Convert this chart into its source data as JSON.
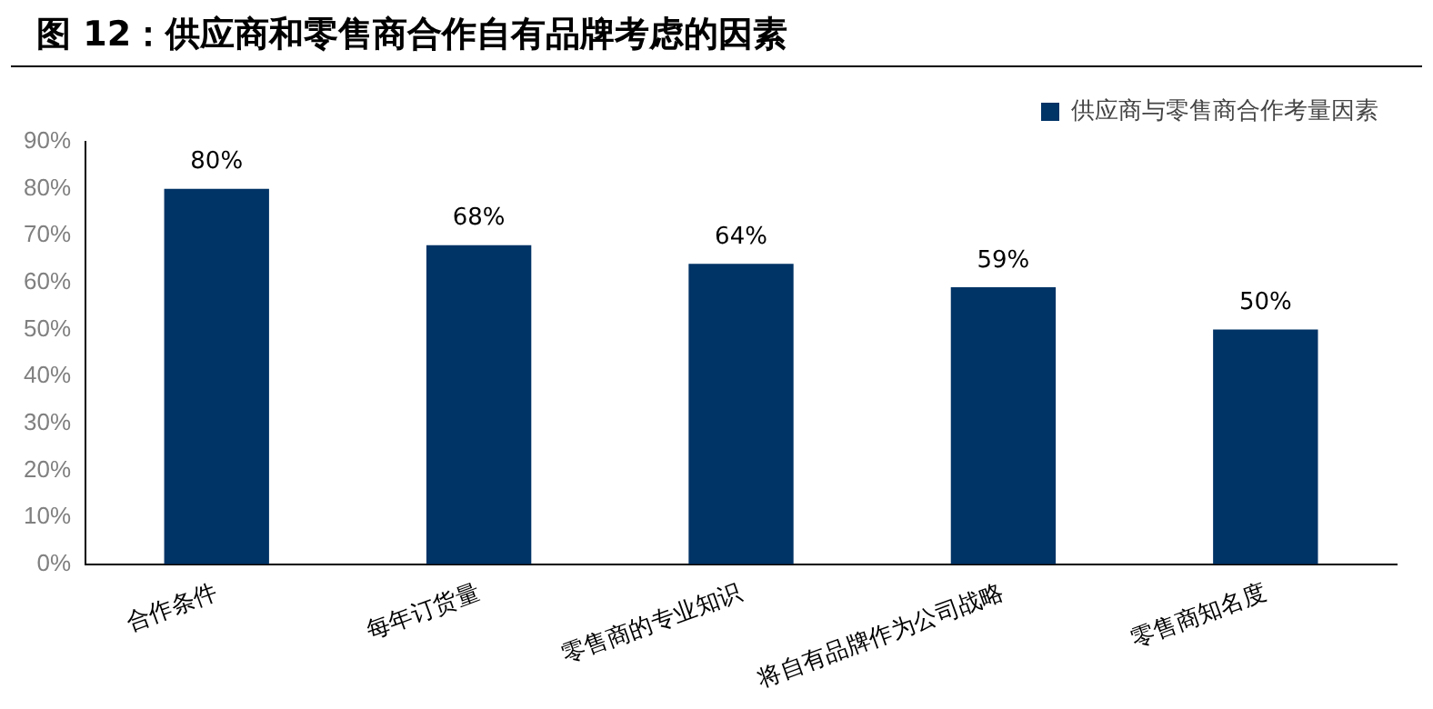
{
  "chart_data": {
    "type": "bar",
    "title": "图 12：供应商和零售商合作自有品牌考虑的因素",
    "categories": [
      "合作条件",
      "每年订货量",
      "零售商的专业知识",
      "将自有品牌作为公司战略",
      "零售商知名度"
    ],
    "series": [
      {
        "name": "供应商与零售商合作考量因素",
        "color": "#003366",
        "values": [
          80,
          68,
          64,
          59,
          50
        ],
        "value_labels": [
          "80%",
          "68%",
          "64%",
          "59%",
          "50%"
        ]
      }
    ],
    "ylim": [
      0,
      90
    ],
    "yticks": [
      {
        "value": 0,
        "label": "0%"
      },
      {
        "value": 10,
        "label": "10%"
      },
      {
        "value": 20,
        "label": "20%"
      },
      {
        "value": 30,
        "label": "30%"
      },
      {
        "value": 40,
        "label": "40%"
      },
      {
        "value": 50,
        "label": "50%"
      },
      {
        "value": 60,
        "label": "60%"
      },
      {
        "value": 70,
        "label": "70%"
      },
      {
        "value": 80,
        "label": "80%"
      },
      {
        "value": 90,
        "label": "90%"
      }
    ],
    "grid": false,
    "legend": "top right"
  }
}
